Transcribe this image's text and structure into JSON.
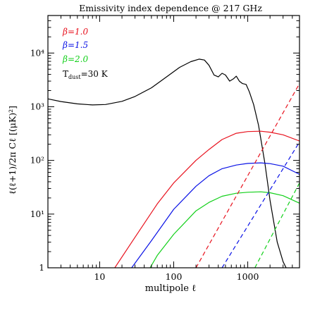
{
  "chart_data": {
    "type": "line",
    "title": "Emissivity index dependence @ 217 GHz",
    "xlabel": "multipole ℓ",
    "ylabel": "ℓ(ℓ+1)/2π Cℓ [(μK)²]",
    "xscale": "log",
    "yscale": "log",
    "xlim": [
      2,
      5000
    ],
    "ylim": [
      1,
      50000
    ],
    "x_ticks": [
      {
        "value": 10,
        "label": "10"
      },
      {
        "value": 100,
        "label": "100"
      },
      {
        "value": 1000,
        "label": "1000"
      }
    ],
    "y_ticks": [
      {
        "value": 1,
        "label": "1"
      },
      {
        "value": 10,
        "label": "10¹"
      },
      {
        "value": 100,
        "label": "10²"
      },
      {
        "value": 1000,
        "label": "10³"
      },
      {
        "value": 10000,
        "label": "10⁴"
      }
    ],
    "legend": {
      "placement": "top-left",
      "entries": [
        {
          "label": "β=1.0",
          "color": "#e8121e"
        },
        {
          "label": "β=1.5",
          "color": "#0a12e6"
        },
        {
          "label": "β=2.0",
          "color": "#12d01a"
        }
      ],
      "annotation": {
        "main": "T",
        "subscript": "dust",
        "suffix": "=30 K"
      }
    },
    "series": [
      {
        "color": "#000000",
        "dash": "solid",
        "points": [
          [
            2,
            1400
          ],
          [
            3,
            1250
          ],
          [
            5,
            1130
          ],
          [
            8,
            1080
          ],
          [
            12,
            1100
          ],
          [
            20,
            1260
          ],
          [
            30,
            1550
          ],
          [
            50,
            2250
          ],
          [
            80,
            3600
          ],
          [
            120,
            5400
          ],
          [
            170,
            6900
          ],
          [
            220,
            7700
          ],
          [
            260,
            7400
          ],
          [
            300,
            5900
          ],
          [
            350,
            3900
          ],
          [
            400,
            3600
          ],
          [
            450,
            4200
          ],
          [
            500,
            3900
          ],
          [
            570,
            3000
          ],
          [
            640,
            3300
          ],
          [
            700,
            3700
          ],
          [
            770,
            3000
          ],
          [
            850,
            2700
          ],
          [
            950,
            2600
          ],
          [
            1050,
            1900
          ],
          [
            1200,
            1100
          ],
          [
            1400,
            450
          ],
          [
            1700,
            90
          ],
          [
            2000,
            18
          ],
          [
            2500,
            3
          ],
          [
            3000,
            1.3
          ],
          [
            3300,
            1
          ]
        ]
      },
      {
        "color": "#e8121e",
        "dash": "solid",
        "points": [
          [
            16,
            1
          ],
          [
            30,
            3.7
          ],
          [
            60,
            15.5
          ],
          [
            100,
            38
          ],
          [
            200,
            100
          ],
          [
            300,
            160
          ],
          [
            450,
            245
          ],
          [
            700,
            320
          ],
          [
            1000,
            345
          ],
          [
            1500,
            350
          ],
          [
            2000,
            335
          ],
          [
            3000,
            300
          ],
          [
            5000,
            230
          ]
        ]
      },
      {
        "color": "#0a12e6",
        "dash": "solid",
        "points": [
          [
            27,
            1
          ],
          [
            50,
            3.2
          ],
          [
            100,
            12.3
          ],
          [
            200,
            33
          ],
          [
            300,
            52
          ],
          [
            450,
            70
          ],
          [
            700,
            82
          ],
          [
            1000,
            88
          ],
          [
            1500,
            90
          ],
          [
            2000,
            87
          ],
          [
            3000,
            78
          ],
          [
            5000,
            55
          ]
        ]
      },
      {
        "color": "#12d01a",
        "dash": "solid",
        "points": [
          [
            48,
            1
          ],
          [
            60,
            1.7
          ],
          [
            100,
            4.2
          ],
          [
            200,
            11.5
          ],
          [
            300,
            16.5
          ],
          [
            450,
            21.5
          ],
          [
            700,
            24.5
          ],
          [
            1000,
            25.5
          ],
          [
            1500,
            26
          ],
          [
            2000,
            25
          ],
          [
            3000,
            22
          ],
          [
            5000,
            16
          ]
        ]
      },
      {
        "color": "#e8121e",
        "dash": "dashed",
        "points": [
          [
            200,
            1
          ],
          [
            5000,
            2700
          ]
        ]
      },
      {
        "color": "#0a12e6",
        "dash": "dashed",
        "points": [
          [
            450,
            1
          ],
          [
            5000,
            220
          ]
        ]
      },
      {
        "color": "#12d01a",
        "dash": "dashed",
        "points": [
          [
            1250,
            1
          ],
          [
            5000,
            38
          ]
        ]
      }
    ]
  }
}
